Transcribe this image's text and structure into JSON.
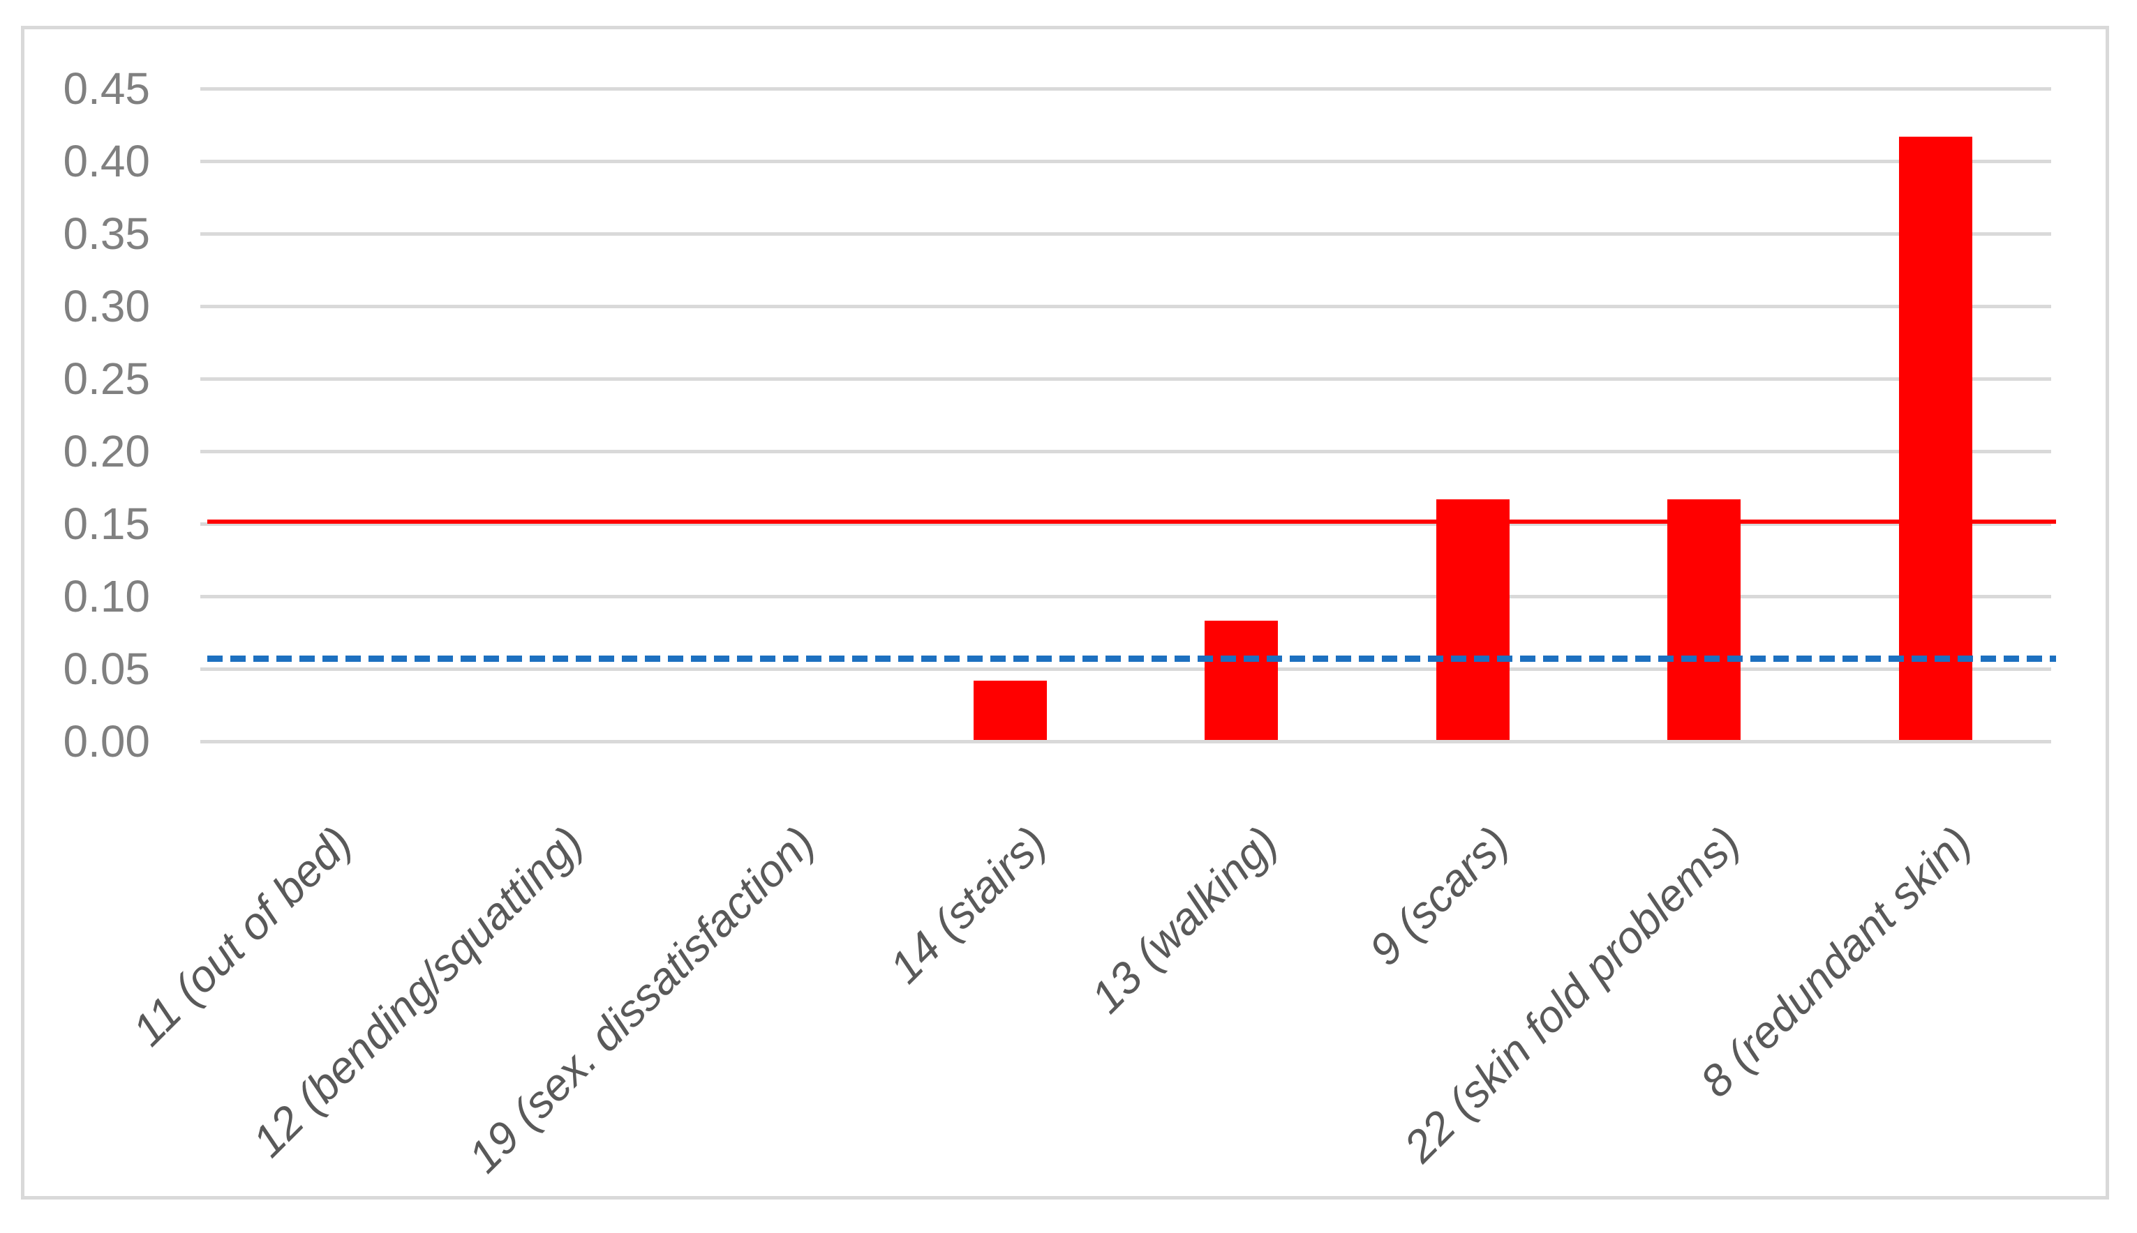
{
  "chart_data": {
    "type": "bar",
    "title": "",
    "categories": [
      "11 (out of bed)",
      "12 (bending/squatting)",
      "19 (sex. dissatisfaction)",
      "14 (stairs)",
      "13 (walking)",
      "9 (scars)",
      "22 (skin fold problems)",
      "8 (redundant skin)"
    ],
    "values": [
      0,
      0,
      0,
      0.042,
      0.083,
      0.167,
      0.167,
      0.417
    ],
    "bar_color": "#ff0000",
    "y_ticks": [
      "0.00",
      "0.05",
      "0.10",
      "0.15",
      "0.20",
      "0.25",
      "0.30",
      "0.35",
      "0.40",
      "0.45"
    ],
    "ylim": [
      0,
      0.45
    ],
    "y_tick_step": 0.05,
    "grid": true,
    "gridline_color": "#d9d9d9",
    "frame_color": "#d9d9d9",
    "y_tick_label_color": "#808080",
    "x_tick_label_color": "#595959",
    "legend": "none",
    "reference_lines": [
      {
        "name": "reference-line-solid-red",
        "value": 0.15,
        "color": "#ff0000",
        "style": "solid"
      },
      {
        "name": "reference-line-dashed-blue",
        "value": 0.057,
        "color": "#1d70c0",
        "style": "dashed"
      }
    ]
  }
}
